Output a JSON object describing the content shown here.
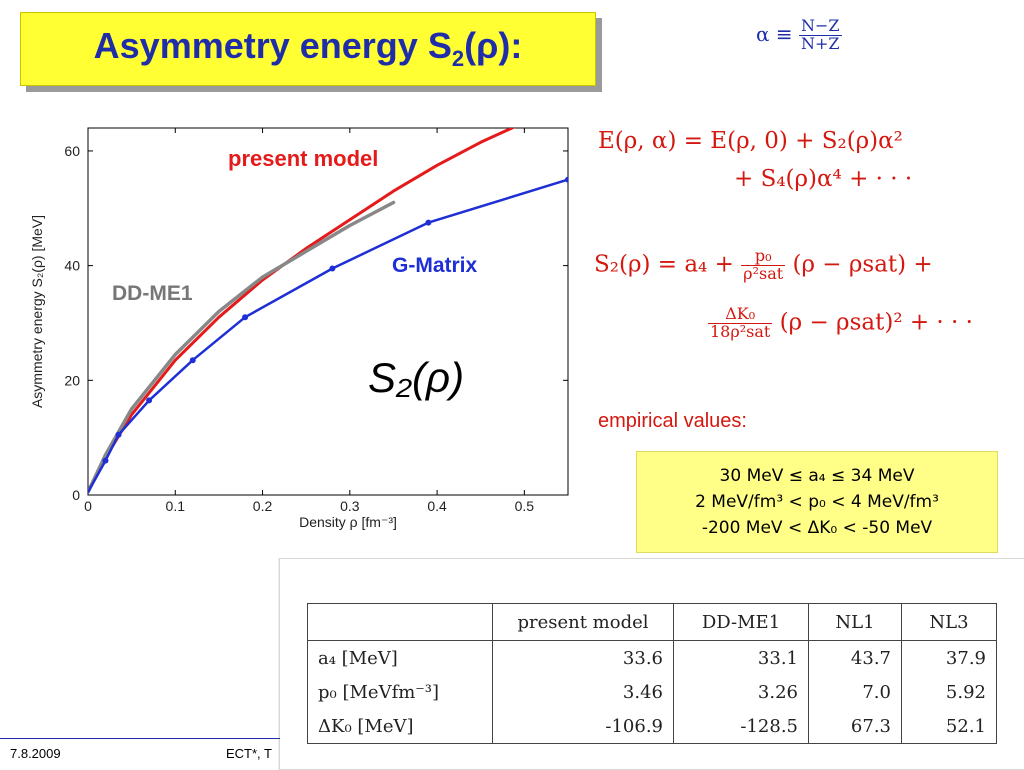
{
  "title": {
    "text": "Asymmetry energy S",
    "sub": "2",
    "suffix": "(ρ):"
  },
  "alpha_definition": {
    "lhs": "α ≡",
    "num": "N−Z",
    "den": "N+Z"
  },
  "equations": {
    "eq1_line1": "E(ρ, α) = E(ρ, 0) + S₂(ρ)α²",
    "eq1_line2": "+ S₄(ρ)α⁴ + · · ·",
    "eq2_lhs": "S₂(ρ) = a₄ +",
    "eq2_frac_num": "p₀",
    "eq2_frac_den": "ρ²sat",
    "eq2_rest": "(ρ − ρsat) +",
    "eq3_frac_num": "ΔK₀",
    "eq3_frac_den": "18ρ²sat",
    "eq3_rest": "(ρ − ρsat)² + · · ·"
  },
  "empirical": {
    "label": "empirical values:",
    "lines": [
      "30 MeV ≤ a₄ ≤ 34 MeV",
      "2 MeV/fm³ < p₀ < 4 MeV/fm³",
      "-200 MeV < ΔK₀ < -50 MeV"
    ]
  },
  "table": {
    "headers": [
      "",
      "present model",
      "DD-ME1",
      "NL1",
      "NL3"
    ],
    "rows": [
      {
        "label": "a₄ [MeV]",
        "values": [
          "33.6",
          "33.1",
          "43.7",
          "37.9"
        ]
      },
      {
        "label": "p₀ [MeVfm⁻³]",
        "values": [
          "3.46",
          "3.26",
          "7.0",
          "5.92"
        ]
      },
      {
        "label": "ΔK₀ [MeV]",
        "values": [
          "-106.9",
          "-128.5",
          "67.3",
          "52.1"
        ]
      }
    ]
  },
  "footer": {
    "date": "7.8.2009",
    "org": "ECT*, T"
  },
  "colors": {
    "title_bg": "#ffff33",
    "title_text": "#1f2ea8",
    "red": "#e51a1a",
    "blue": "#1f2fd6",
    "gray": "#888888"
  },
  "chart_data": {
    "type": "line",
    "xlabel": "Density ρ [fm⁻³]",
    "ylabel": "Asymmetry energy S₂(ρ) [MeV]",
    "xlim": [
      0,
      0.55
    ],
    "ylim": [
      0,
      64
    ],
    "xticks": [
      "0",
      "0.1",
      "0.2",
      "0.3",
      "0.4",
      "0.5"
    ],
    "yticks": [
      "0",
      "20",
      "40",
      "60"
    ],
    "annotation": "S₂(ρ)",
    "series": [
      {
        "name": "present model",
        "color": "#e51a1a",
        "x": [
          0,
          0.02,
          0.05,
          0.1,
          0.15,
          0.2,
          0.25,
          0.3,
          0.35,
          0.4,
          0.45,
          0.5,
          0.53
        ],
        "y": [
          0.5,
          6.5,
          14,
          23.5,
          31,
          37.5,
          43,
          48,
          53,
          57.5,
          61.5,
          65,
          67
        ]
      },
      {
        "name": "DD-ME1",
        "color": "#888888",
        "x": [
          0,
          0.02,
          0.05,
          0.1,
          0.15,
          0.2,
          0.25,
          0.3,
          0.35
        ],
        "y": [
          0.5,
          7,
          15,
          24.5,
          32,
          38,
          42.5,
          47,
          51
        ]
      },
      {
        "name": "G-Matrix",
        "color": "#1f2fd6",
        "markers": true,
        "x": [
          0,
          0.02,
          0.035,
          0.07,
          0.12,
          0.18,
          0.28,
          0.39,
          0.55
        ],
        "y": [
          0.5,
          6,
          10.5,
          16.5,
          23.5,
          31,
          39.5,
          47.5,
          55
        ]
      }
    ]
  }
}
